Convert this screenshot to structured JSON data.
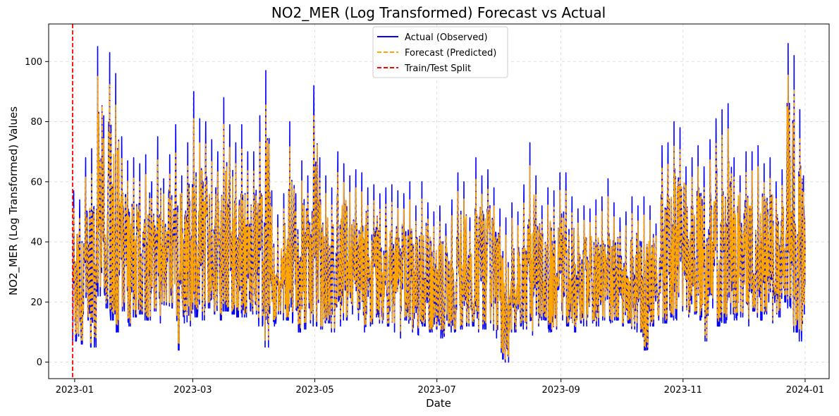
{
  "chart_data": {
    "type": "line",
    "title": "NO2_MER (Log Transformed) Forecast vs Actual",
    "xlabel": "Date",
    "ylabel": "NO2_MER (Log Transformed) Values",
    "xlim": [
      "2022-12-19",
      "2024-01-13"
    ],
    "ylim": [
      -5.5,
      112.5
    ],
    "x_ticks": [
      "2023-01",
      "2023-03",
      "2023-05",
      "2023-07",
      "2023-09",
      "2023-11",
      "2024-01"
    ],
    "y_ticks": [
      0,
      20,
      40,
      60,
      80,
      100
    ],
    "grid": true,
    "legend_position": "top-center",
    "series": [
      {
        "name": "Actual (Observed)",
        "color": "#0000ff",
        "style": "solid",
        "x": [
          "2022-12-31",
          "2023-01-03",
          "2023-01-06",
          "2023-01-09",
          "2023-01-12",
          "2023-01-15",
          "2023-01-18",
          "2023-01-21",
          "2023-01-24",
          "2023-01-27",
          "2023-01-30",
          "2023-02-02",
          "2023-02-05",
          "2023-02-08",
          "2023-02-11",
          "2023-02-14",
          "2023-02-17",
          "2023-02-20",
          "2023-02-23",
          "2023-02-26",
          "2023-03-01",
          "2023-03-04",
          "2023-03-07",
          "2023-03-10",
          "2023-03-13",
          "2023-03-16",
          "2023-03-19",
          "2023-03-22",
          "2023-03-25",
          "2023-03-28",
          "2023-03-31",
          "2023-04-03",
          "2023-04-06",
          "2023-04-09",
          "2023-04-12",
          "2023-04-15",
          "2023-04-18",
          "2023-04-21",
          "2023-04-24",
          "2023-04-27",
          "2023-04-30",
          "2023-05-03",
          "2023-05-06",
          "2023-05-09",
          "2023-05-12",
          "2023-05-15",
          "2023-05-18",
          "2023-05-21",
          "2023-05-24",
          "2023-05-27",
          "2023-05-30",
          "2023-06-02",
          "2023-06-05",
          "2023-06-08",
          "2023-06-11",
          "2023-06-14",
          "2023-06-17",
          "2023-06-20",
          "2023-06-23",
          "2023-06-26",
          "2023-06-29",
          "2023-07-02",
          "2023-07-05",
          "2023-07-08",
          "2023-07-11",
          "2023-07-14",
          "2023-07-17",
          "2023-07-20",
          "2023-07-23",
          "2023-07-26",
          "2023-07-29",
          "2023-08-01",
          "2023-08-04",
          "2023-08-07",
          "2023-08-10",
          "2023-08-13",
          "2023-08-16",
          "2023-08-19",
          "2023-08-22",
          "2023-08-25",
          "2023-08-28",
          "2023-08-31",
          "2023-09-03",
          "2023-09-06",
          "2023-09-09",
          "2023-09-12",
          "2023-09-15",
          "2023-09-18",
          "2023-09-21",
          "2023-09-24",
          "2023-09-27",
          "2023-09-30",
          "2023-10-03",
          "2023-10-06",
          "2023-10-09",
          "2023-10-12",
          "2023-10-15",
          "2023-10-18",
          "2023-10-21",
          "2023-10-24",
          "2023-10-27",
          "2023-10-30",
          "2023-11-02",
          "2023-11-05",
          "2023-11-08",
          "2023-11-11",
          "2023-11-14",
          "2023-11-17",
          "2023-11-20",
          "2023-11-23",
          "2023-11-26",
          "2023-11-29",
          "2023-12-02",
          "2023-12-05",
          "2023-12-08",
          "2023-12-11",
          "2023-12-14",
          "2023-12-17",
          "2023-12-20",
          "2023-12-23",
          "2023-12-26",
          "2023-12-29",
          "2023-12-31"
        ],
        "low": [
          7,
          6,
          14,
          5,
          22,
          18,
          14,
          10,
          17,
          12,
          15,
          16,
          14,
          17,
          13,
          19,
          18,
          4,
          13,
          12,
          15,
          14,
          18,
          16,
          14,
          17,
          16,
          15,
          15,
          17,
          16,
          12,
          5,
          12,
          16,
          14,
          13,
          10,
          11,
          13,
          12,
          11,
          13,
          10,
          12,
          14,
          16,
          14,
          10,
          12,
          15,
          13,
          12,
          10,
          8,
          14,
          10,
          9,
          12,
          10,
          11,
          8,
          12,
          10,
          11,
          12,
          12,
          10,
          11,
          13,
          8,
          1,
          0,
          10,
          12,
          11,
          9,
          12,
          14,
          10,
          11,
          14,
          12,
          10,
          13,
          12,
          13,
          12,
          14,
          13,
          14,
          12,
          13,
          11,
          10,
          4,
          12,
          14,
          13,
          15,
          14,
          17,
          15,
          16,
          14,
          7,
          18,
          12,
          13,
          16,
          14,
          15,
          12,
          17,
          14,
          16,
          13,
          15,
          20,
          18,
          10,
          7,
          16
        ],
        "high": [
          57,
          54,
          68,
          71,
          105,
          82,
          103,
          96,
          75,
          67,
          68,
          66,
          69,
          60,
          75,
          61,
          69,
          79,
          62,
          73,
          90,
          81,
          80,
          74,
          70,
          88,
          79,
          73,
          79,
          70,
          70,
          82,
          97,
          57,
          49,
          56,
          80,
          56,
          67,
          62,
          92,
          68,
          62,
          58,
          70,
          66,
          62,
          64,
          63,
          58,
          59,
          56,
          58,
          59,
          57,
          56,
          60,
          52,
          60,
          53,
          50,
          52,
          46,
          54,
          63,
          60,
          48,
          68,
          62,
          64,
          58,
          51,
          48,
          53,
          50,
          59,
          73,
          62,
          52,
          58,
          57,
          63,
          63,
          55,
          51,
          52,
          51,
          54,
          55,
          61,
          53,
          48,
          50,
          55,
          52,
          55,
          52,
          46,
          72,
          73,
          80,
          78,
          65,
          68,
          72,
          65,
          74,
          81,
          84,
          86,
          68,
          62,
          70,
          70,
          72,
          66,
          68,
          60,
          64,
          106,
          102,
          84,
          62
        ],
        "end_values": [
          52
        ]
      },
      {
        "name": "Forecast (Predicted)",
        "color": "#ffa500",
        "style": "dashed"
      },
      {
        "name": "Train/Test Split",
        "color": "#ff0000",
        "style": "dashed",
        "x_value": "2022-12-31"
      }
    ]
  }
}
